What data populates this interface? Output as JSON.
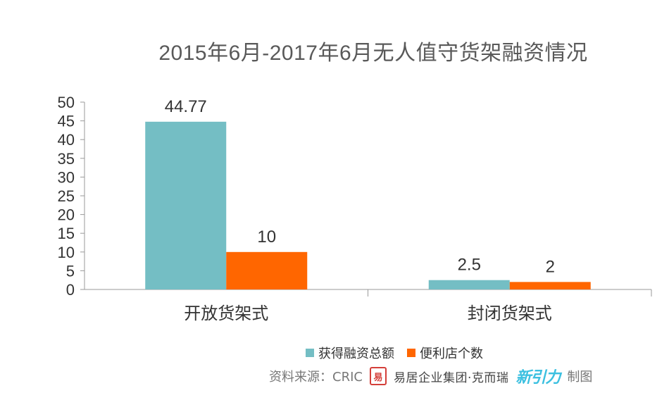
{
  "colors": {
    "series1": "#74bec4",
    "series2": "#ff6600",
    "axis": "#9a9a9a",
    "text": "#333333"
  },
  "chart_data": {
    "type": "bar",
    "title": "2015年6月-2017年6月无人值守货架融资情况",
    "categories": [
      "开放货架式",
      "封闭货架式"
    ],
    "series": [
      {
        "name": "获得融资总额",
        "values": [
          44.77,
          2.5
        ],
        "labels": [
          "44.77",
          "2.5"
        ]
      },
      {
        "name": "便利店个数",
        "values": [
          10,
          2
        ],
        "labels": [
          "10",
          "2"
        ]
      }
    ],
    "ylim": [
      0,
      50
    ],
    "yticks": [
      0,
      5,
      10,
      15,
      20,
      25,
      30,
      35,
      40,
      45,
      50
    ],
    "xlabel": "",
    "ylabel": "",
    "grid": false,
    "legend": "bottom"
  },
  "footer": {
    "source": "资料来源：CRIC",
    "seal_text": "易",
    "brand": "易居企业集团·克而瑞",
    "partner_logo": "新引力",
    "made_by": "制图"
  }
}
